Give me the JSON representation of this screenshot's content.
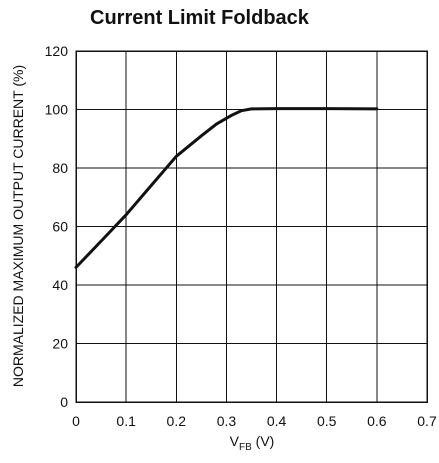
{
  "chart_data": {
    "type": "line",
    "title": "Current Limit Foldback",
    "xlabel_main": "V",
    "xlabel_sub": "FB",
    "xlabel_unit": " (V)",
    "ylabel": "NORMALIZED MAXIMUM OUTPUT CURRENT (%)",
    "xlim": [
      0,
      0.7
    ],
    "ylim": [
      0,
      120
    ],
    "x_ticks": [
      "0",
      "0.1",
      "0.2",
      "0.3",
      "0.4",
      "0.5",
      "0.6",
      "0.7"
    ],
    "y_ticks": [
      "0",
      "20",
      "40",
      "60",
      "80",
      "100",
      "120"
    ],
    "grid": true,
    "series": [
      {
        "x": [
          0,
          0.05,
          0.1,
          0.15,
          0.2,
          0.25,
          0.28,
          0.31,
          0.33,
          0.35,
          0.4,
          0.5,
          0.6
        ],
        "y": [
          46,
          55,
          64,
          74,
          84,
          91,
          95,
          98,
          99.6,
          100.2,
          100.3,
          100.3,
          100.2
        ]
      }
    ]
  }
}
